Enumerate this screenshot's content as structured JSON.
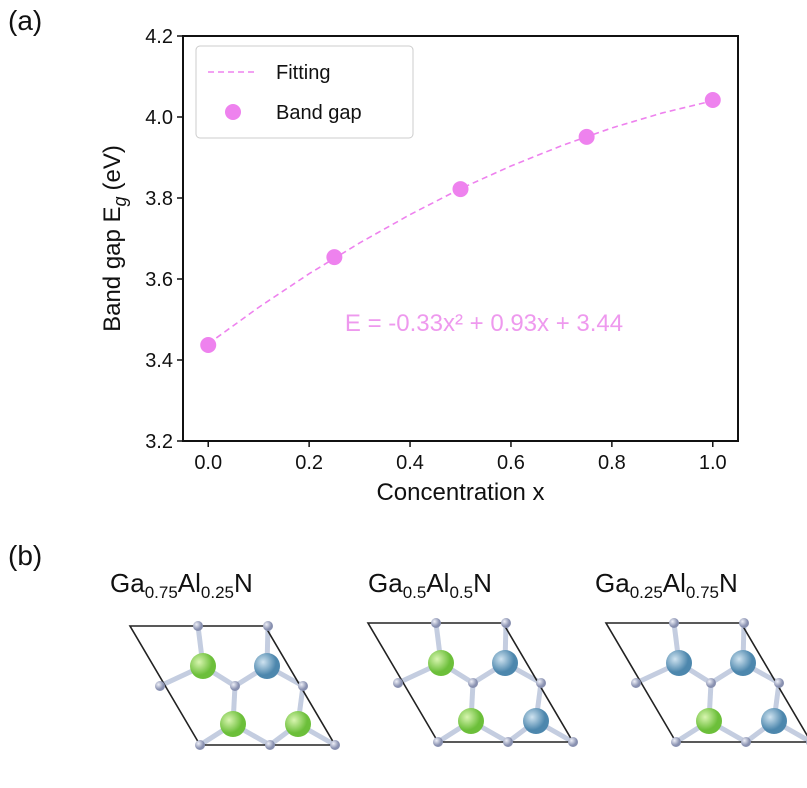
{
  "chart_data": {
    "type": "scatter",
    "panel_label": "(a)",
    "xlabel": "Concentration x",
    "ylabel": [
      "Band gap E",
      "g",
      "(eV)"
    ],
    "annotation": "E = -0.33x² + 0.93x + 3.44",
    "annotation_color": "#ee99ee",
    "xlim": [
      -0.05,
      1.05
    ],
    "ylim": [
      3.2,
      4.2
    ],
    "xticks": [
      {
        "value": 0,
        "label": "0.0"
      },
      0.2,
      0.4,
      0.6,
      0.8,
      {
        "value": 1,
        "label": "1.0"
      }
    ],
    "yticks": [
      3.2,
      3.4,
      3.6,
      3.8,
      {
        "value": 4,
        "label": "4.0"
      },
      4.2
    ],
    "legend": "upper left",
    "grid": false,
    "series": [
      {
        "name": "Fitting",
        "type": "line",
        "style": "dashed",
        "color": "#ee82ee",
        "x": [
          0,
          0.1,
          0.2,
          0.3,
          0.4,
          0.5,
          0.6,
          0.7,
          0.8,
          0.9,
          1
        ],
        "values": [
          3.44,
          3.53,
          3.613,
          3.689,
          3.759,
          3.823,
          3.879,
          3.929,
          3.973,
          4.01,
          4.04
        ]
      },
      {
        "name": "Band gap",
        "type": "scatter",
        "color": "#ee82ee",
        "x": [
          0,
          0.25,
          0.5,
          0.75,
          1
        ],
        "values": [
          3.437,
          3.654,
          3.822,
          3.951,
          4.042
        ]
      }
    ]
  },
  "panel_b": {
    "label": "(b)",
    "structures": [
      {
        "parts": [
          "Ga",
          "0.75",
          "Al",
          "0.25",
          "N"
        ]
      },
      {
        "parts": [
          "Ga",
          "0.5",
          "Al",
          "0.5",
          "N"
        ]
      },
      {
        "parts": [
          "Ga",
          "0.25",
          "Al",
          "0.75",
          "N"
        ]
      }
    ]
  }
}
